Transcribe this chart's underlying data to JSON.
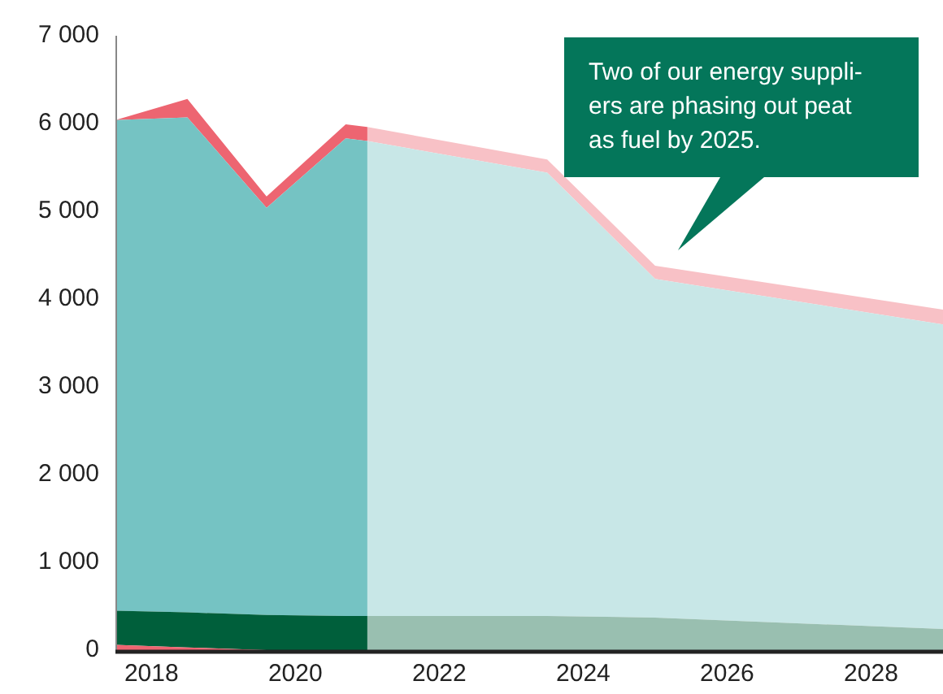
{
  "chart_data": {
    "type": "area",
    "stacked": true,
    "grid": false,
    "legend": false,
    "x": [
      2017.5,
      2018.5,
      2019.6,
      2020.7,
      2021,
      2023.5,
      2025,
      2029
    ],
    "series": [
      {
        "color": "#ed6571",
        "values": [
          60,
          30,
          0,
          0,
          0,
          0,
          0,
          0
        ]
      },
      {
        "color": "#005f3b",
        "values": [
          390,
          400,
          400,
          390,
          390,
          390,
          370,
          240
        ]
      },
      {
        "color": "#75c3c3",
        "values": [
          5590,
          5640,
          4640,
          5440,
          5410,
          5050,
          3860,
          3470
        ]
      },
      {
        "color": "#ed6571",
        "values": [
          0,
          210,
          130,
          160,
          160,
          150,
          150,
          170
        ]
      }
    ],
    "xlim": [
      2017.5,
      2029
    ],
    "xticks": [
      2018,
      2020,
      2022,
      2024,
      2026,
      2028
    ],
    "ylim": [
      0,
      7000
    ],
    "yticks": [
      {
        "value": 0,
        "label": "0"
      },
      {
        "value": 1000,
        "label": "1 000"
      },
      {
        "value": 2000,
        "label": "2 000"
      },
      {
        "value": 3000,
        "label": "3 000"
      },
      {
        "value": 4000,
        "label": "4 000"
      },
      {
        "value": 5000,
        "label": "5 000"
      },
      {
        "value": 6000,
        "label": "6 000"
      },
      {
        "value": 7000,
        "label": "7 000"
      }
    ],
    "bands": [
      {
        "axis": "x",
        "from": 2021,
        "to": 2029,
        "color": "#ffffff"
      }
    ],
    "annotations": [
      "Two of our energy suppli-\ners are phasing out peat\nas fuel by 2025."
    ]
  }
}
